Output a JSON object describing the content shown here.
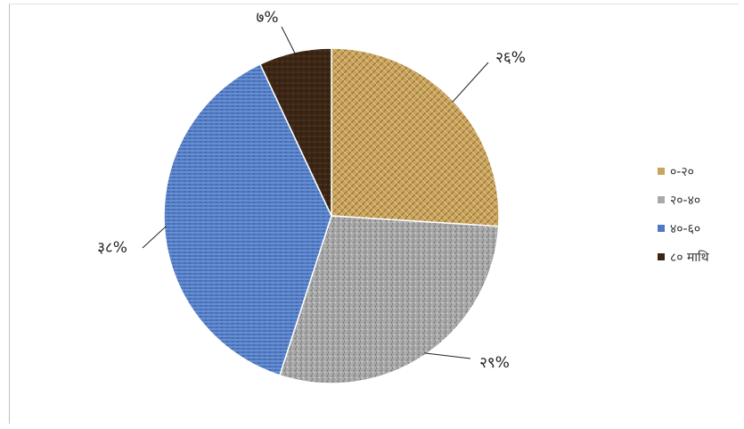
{
  "chart_data": {
    "type": "pie",
    "title": "",
    "slices": [
      {
        "label": "०-२०",
        "value": 26,
        "display": "२६%",
        "color": "#c9a45e"
      },
      {
        "label": "२०-४०",
        "value": 29,
        "display": "२९%",
        "color": "#a9a9a9"
      },
      {
        "label": "४०-६०",
        "value": 38,
        "display": "३८%",
        "color": "#4f79c2"
      },
      {
        "label": "८० माथि",
        "value": 7,
        "display": "७%",
        "color": "#3b2616"
      }
    ],
    "legend_position": "right",
    "start_angle_deg": 0,
    "direction": "clockwise"
  }
}
